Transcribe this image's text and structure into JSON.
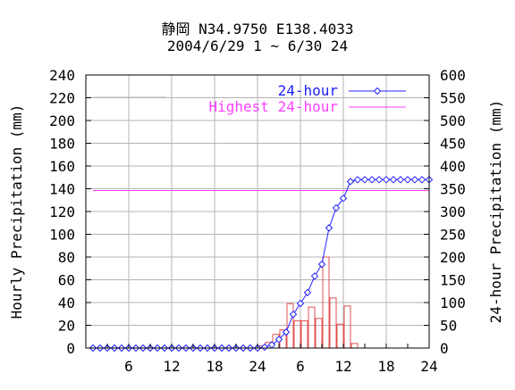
{
  "title": {
    "line1": "静岡 N34.9750 E138.4033",
    "line2": "2004/6/29 1 ~ 6/30 24"
  },
  "chart_data": {
    "type": "bar+line",
    "y_left": {
      "label": "Hourly Precipitation (mm)",
      "min": 0,
      "max": 240,
      "step": 20,
      "ticks": [
        "0",
        "20",
        "40",
        "60",
        "80",
        "100",
        "120",
        "140",
        "160",
        "180",
        "200",
        "220",
        "240"
      ]
    },
    "y_right": {
      "label": "24-hour Precipitation (mm)",
      "min": 0,
      "max": 600,
      "step": 50,
      "ticks": [
        "0",
        "50",
        "100",
        "150",
        "200",
        "250",
        "300",
        "350",
        "400",
        "450",
        "500",
        "550",
        "600"
      ]
    },
    "x": {
      "min": 0,
      "max": 48,
      "tick_labels": [
        {
          "hour": 6,
          "label": "6"
        },
        {
          "hour": 12,
          "label": "12"
        },
        {
          "hour": 18,
          "label": "18"
        },
        {
          "hour": 24,
          "label": "24"
        },
        {
          "hour": 30,
          "label": "6"
        },
        {
          "hour": 36,
          "label": "12"
        },
        {
          "hour": 42,
          "label": "18"
        },
        {
          "hour": 48,
          "label": "24"
        }
      ]
    },
    "grid": true,
    "legend": {
      "placement": "top",
      "entries": [
        {
          "label": "",
          "color": "#b4b4b4"
        },
        {
          "label": "24-hour",
          "color": "#2020ff"
        },
        {
          "label": "Highest 24-hour",
          "color": "#ff40ff"
        }
      ]
    },
    "hours": [
      1,
      2,
      3,
      4,
      5,
      6,
      7,
      8,
      9,
      10,
      11,
      12,
      13,
      14,
      15,
      16,
      17,
      18,
      19,
      20,
      21,
      22,
      23,
      24,
      25,
      26,
      27,
      28,
      29,
      30,
      31,
      32,
      33,
      34,
      35,
      36,
      37,
      38,
      39,
      40,
      41,
      42,
      43,
      44,
      45,
      46,
      47,
      48
    ],
    "series": [
      {
        "name": "Hourly",
        "kind": "bar",
        "axis": "left",
        "color": "#e05050",
        "values": [
          0,
          0,
          0,
          0,
          0,
          0,
          0,
          0,
          0,
          0,
          0,
          0,
          0,
          0,
          0,
          0,
          0,
          0,
          0,
          0,
          0,
          0,
          0,
          0,
          2,
          5,
          12,
          16,
          39,
          24,
          24,
          36,
          26,
          80,
          44,
          21,
          37,
          4,
          0,
          0,
          0,
          0,
          0,
          0,
          0,
          0,
          0,
          0
        ]
      },
      {
        "name": "24-hour",
        "kind": "line",
        "axis": "right",
        "color": "#2020ff",
        "values": [
          0,
          0,
          0,
          0,
          0,
          0,
          0,
          0,
          0,
          0,
          0,
          0,
          0,
          0,
          0,
          0,
          0,
          0,
          0,
          0,
          0,
          0,
          0,
          0,
          2,
          7,
          19,
          35,
          74,
          98,
          122,
          158,
          184,
          264,
          308,
          329,
          366,
          370,
          370,
          370,
          370,
          370,
          370,
          370,
          370,
          370,
          370,
          370
        ]
      },
      {
        "name": "Highest 24-hour",
        "kind": "hline",
        "axis": "right",
        "color": "#ff40ff",
        "value": 346
      }
    ]
  }
}
